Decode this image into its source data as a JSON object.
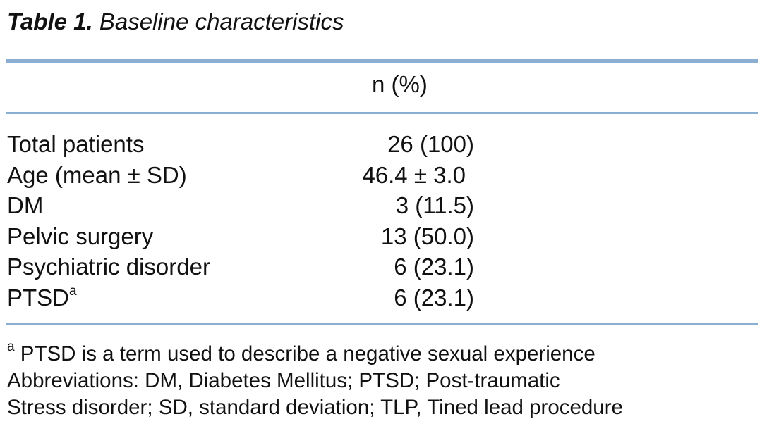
{
  "caption": {
    "label": "Table 1.",
    "title": "Baseline characteristics"
  },
  "table": {
    "column_header": "n (%)",
    "rows": [
      {
        "label": "Total patients",
        "superscript": "",
        "value": "26 (100)"
      },
      {
        "label": "Age (mean ± SD)",
        "superscript": "",
        "value": "46.4 ± 3.0"
      },
      {
        "label": "DM",
        "superscript": "",
        "value": "3 (11.5)"
      },
      {
        "label": "Pelvic surgery",
        "superscript": "",
        "value": "13 (50.0)"
      },
      {
        "label": "Psychiatric disorder",
        "superscript": "",
        "value": "6 (23.1)"
      },
      {
        "label": "PTSD",
        "superscript": "a",
        "value": "6 (23.1)"
      }
    ]
  },
  "footnotes": {
    "note_a_marker": "a",
    "note_a_text": "PTSD is a term used to describe a negative sexual experience",
    "abbreviations_line1": "Abbreviations: DM, Diabetes Mellitus; PTSD; Post-traumatic",
    "abbreviations_line2": "Stress disorder; SD, standard deviation; TLP, Tined lead procedure"
  },
  "colors": {
    "rule": "#8aafd3",
    "text": "#111111"
  }
}
